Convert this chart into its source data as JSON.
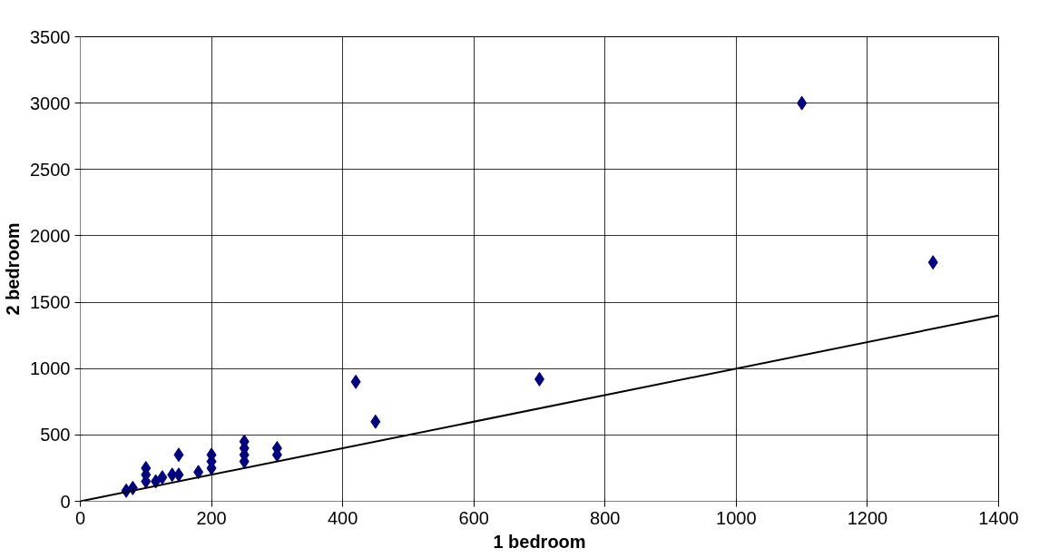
{
  "chart_data": {
    "type": "scatter",
    "xlabel": "1 bedroom",
    "ylabel": "2 bedroom",
    "marker": "diamond",
    "grid": true,
    "xlim": [
      0,
      1400
    ],
    "xticks": [
      0,
      200,
      400,
      600,
      800,
      1000,
      1200,
      1400
    ],
    "ylim": [
      0,
      3500
    ],
    "yticks": [
      0,
      500,
      1000,
      1500,
      2000,
      2500,
      3000,
      3500
    ],
    "series": [
      {
        "color": "#000080",
        "x": [
          70,
          80,
          100,
          100,
          100,
          115,
          125,
          140,
          150,
          150,
          180,
          200,
          200,
          200,
          250,
          250,
          250,
          250,
          300,
          300,
          420,
          450,
          700,
          1100,
          1300
        ],
        "values": [
          80,
          100,
          150,
          200,
          250,
          150,
          180,
          200,
          200,
          350,
          220,
          250,
          300,
          350,
          300,
          350,
          400,
          450,
          350,
          400,
          900,
          600,
          920,
          3000,
          1800
        ]
      },
      {
        "type": "line",
        "color": "#000000",
        "marker": "none",
        "x": [
          0,
          1400
        ],
        "values": [
          0,
          1400
        ]
      }
    ]
  }
}
